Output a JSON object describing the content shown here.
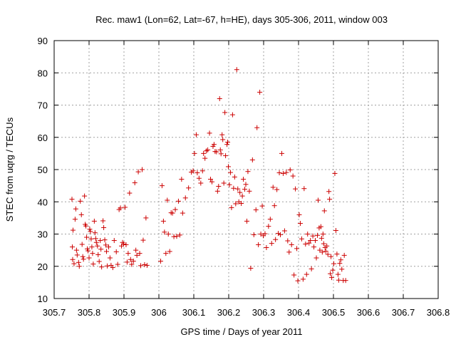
{
  "chart_data": {
    "type": "scatter",
    "title": "Rec. maw1 (Lon=62, Lat=-67, h=HE), days 305-306, 2011, window 003",
    "xlabel": "GPS time / Days of year 2011",
    "ylabel": "STEC from uqrg / TECUs",
    "xlim": [
      305.7,
      306.8
    ],
    "ylim": [
      10,
      90
    ],
    "xticks": [
      305.7,
      305.8,
      305.9,
      306.0,
      306.1,
      306.2,
      306.3,
      306.4,
      306.5,
      306.6,
      306.7,
      306.8
    ],
    "xtick_labels": [
      "305.7",
      "305.8",
      "305.9",
      "306",
      "306.1",
      "306.2",
      "306.3",
      "306.4",
      "306.5",
      "306.6",
      "306.7",
      "306.8"
    ],
    "yticks": [
      10,
      20,
      30,
      40,
      50,
      60,
      70,
      80,
      90
    ],
    "ytick_labels": [
      "10",
      "20",
      "30",
      "40",
      "50",
      "60",
      "70",
      "80",
      "90"
    ],
    "grid": true,
    "marker": "plus",
    "color": "#cc0000",
    "series": [
      {
        "points": [
          [
            305.751,
            40.8
          ],
          [
            305.754,
            31.2
          ],
          [
            305.752,
            26.0
          ],
          [
            305.753,
            22.1
          ],
          [
            305.757,
            20.8
          ],
          [
            305.76,
            34.6
          ],
          [
            305.762,
            37.8
          ],
          [
            305.764,
            25.0
          ],
          [
            305.766,
            23.5
          ],
          [
            305.77,
            21.2
          ],
          [
            305.772,
            20.0
          ],
          [
            305.775,
            40.2
          ],
          [
            305.778,
            36.0
          ],
          [
            305.78,
            26.8
          ],
          [
            305.782,
            23.0
          ],
          [
            305.784,
            22.2
          ],
          [
            305.787,
            41.8
          ],
          [
            305.789,
            33.0
          ],
          [
            305.791,
            32.5
          ],
          [
            305.793,
            29.0
          ],
          [
            305.795,
            25.4
          ],
          [
            305.797,
            24.8
          ],
          [
            305.8,
            22.6
          ],
          [
            305.802,
            31.5
          ],
          [
            305.804,
            30.8
          ],
          [
            305.806,
            28.5
          ],
          [
            305.808,
            26.0
          ],
          [
            305.81,
            24.0
          ],
          [
            305.812,
            20.7
          ],
          [
            305.815,
            34.0
          ],
          [
            305.817,
            30.4
          ],
          [
            305.819,
            28.6
          ],
          [
            305.821,
            27.4
          ],
          [
            305.824,
            26.3
          ],
          [
            305.826,
            23.6
          ],
          [
            305.829,
            21.5
          ],
          [
            305.832,
            28.0
          ],
          [
            305.834,
            25.3
          ],
          [
            305.836,
            19.8
          ],
          [
            305.84,
            34.1
          ],
          [
            305.842,
            32.0
          ],
          [
            305.845,
            28.2
          ],
          [
            305.848,
            26.6
          ],
          [
            305.85,
            24.6
          ],
          [
            305.852,
            20.1
          ],
          [
            305.856,
            26.0
          ],
          [
            305.86,
            22.6
          ],
          [
            305.863,
            20.3
          ],
          [
            305.868,
            19.6
          ],
          [
            305.872,
            28.0
          ],
          [
            305.878,
            24.5
          ],
          [
            305.882,
            20.6
          ],
          [
            305.886,
            37.6
          ],
          [
            305.89,
            38.1
          ],
          [
            305.893,
            26.3
          ],
          [
            305.896,
            27.4
          ],
          [
            305.899,
            26.9
          ],
          [
            305.903,
            38.3
          ],
          [
            305.906,
            26.7
          ],
          [
            305.909,
            21.3
          ],
          [
            305.912,
            24.0
          ],
          [
            305.916,
            42.7
          ],
          [
            305.919,
            22.1
          ],
          [
            305.922,
            20.6
          ],
          [
            305.927,
            21.6
          ],
          [
            305.931,
            45.9
          ],
          [
            305.934,
            25.0
          ],
          [
            305.937,
            23.4
          ],
          [
            305.941,
            49.3
          ],
          [
            305.945,
            24.0
          ],
          [
            305.948,
            20.2
          ],
          [
            305.952,
            50.0
          ],
          [
            305.955,
            28.1
          ],
          [
            305.959,
            20.5
          ],
          [
            305.963,
            35.0
          ],
          [
            305.966,
            20.3
          ],
          [
            306.005,
            21.6
          ],
          [
            306.009,
            45.0
          ],
          [
            306.013,
            34.0
          ],
          [
            306.016,
            30.6
          ],
          [
            306.02,
            24.0
          ],
          [
            306.024,
            40.5
          ],
          [
            306.027,
            30.0
          ],
          [
            306.031,
            24.6
          ],
          [
            306.035,
            36.6
          ],
          [
            306.039,
            36.5
          ],
          [
            306.043,
            29.2
          ],
          [
            306.047,
            37.6
          ],
          [
            306.051,
            29.3
          ],
          [
            306.056,
            40.2
          ],
          [
            306.06,
            29.7
          ],
          [
            306.065,
            47.0
          ],
          [
            306.068,
            36.5
          ],
          [
            306.076,
            41.2
          ],
          [
            306.085,
            44.3
          ],
          [
            306.093,
            49.2
          ],
          [
            306.098,
            49.6
          ],
          [
            306.102,
            55.0
          ],
          [
            306.107,
            60.8
          ],
          [
            306.11,
            49.0
          ],
          [
            306.115,
            47.3
          ],
          [
            306.12,
            45.8
          ],
          [
            306.125,
            49.6
          ],
          [
            306.128,
            55.0
          ],
          [
            306.132,
            53.5
          ],
          [
            306.136,
            55.8
          ],
          [
            306.14,
            56.1
          ],
          [
            306.145,
            61.3
          ],
          [
            306.148,
            47.0
          ],
          [
            306.152,
            46.2
          ],
          [
            306.155,
            57.2
          ],
          [
            306.158,
            57.8
          ],
          [
            306.161,
            55.6
          ],
          [
            306.165,
            55.5
          ],
          [
            306.168,
            43.3
          ],
          [
            306.171,
            44.8
          ],
          [
            306.174,
            72.0
          ],
          [
            306.176,
            56.1
          ],
          [
            306.178,
            54.9
          ],
          [
            306.181,
            60.8
          ],
          [
            306.183,
            59.3
          ],
          [
            306.186,
            45.8
          ],
          [
            306.189,
            67.7
          ],
          [
            306.191,
            54.3
          ],
          [
            306.195,
            57.8
          ],
          [
            306.197,
            58.5
          ],
          [
            306.199,
            50.9
          ],
          [
            306.202,
            45.3
          ],
          [
            306.205,
            49.1
          ],
          [
            306.208,
            38.2
          ],
          [
            306.211,
            67.0
          ],
          [
            306.214,
            44.2
          ],
          [
            306.217,
            47.7
          ],
          [
            306.22,
            39.4
          ],
          [
            306.223,
            81.0
          ],
          [
            306.226,
            44.0
          ],
          [
            306.229,
            40.0
          ],
          [
            306.232,
            42.9
          ],
          [
            306.236,
            39.5
          ],
          [
            306.239,
            41.8
          ],
          [
            306.242,
            47.0
          ],
          [
            306.246,
            43.9
          ],
          [
            306.249,
            45.4
          ],
          [
            306.252,
            34.0
          ],
          [
            306.255,
            49.4
          ],
          [
            306.259,
            43.3
          ],
          [
            306.263,
            19.4
          ],
          [
            306.268,
            53.0
          ],
          [
            306.272,
            29.8
          ],
          [
            306.278,
            37.5
          ],
          [
            306.281,
            63.0
          ],
          [
            306.285,
            26.7
          ],
          [
            306.289,
            74.0
          ],
          [
            306.292,
            30.0
          ],
          [
            306.296,
            38.7
          ],
          [
            306.299,
            29.5
          ],
          [
            306.304,
            30.1
          ],
          [
            306.308,
            25.8
          ],
          [
            306.314,
            32.4
          ],
          [
            306.319,
            34.6
          ],
          [
            306.323,
            27.1
          ],
          [
            306.327,
            44.5
          ],
          [
            306.331,
            38.8
          ],
          [
            306.334,
            28.3
          ],
          [
            306.338,
            43.8
          ],
          [
            306.342,
            30.2
          ],
          [
            306.345,
            49.0
          ],
          [
            306.348,
            29.8
          ],
          [
            306.352,
            55.0
          ],
          [
            306.356,
            48.8
          ],
          [
            306.36,
            31.0
          ],
          [
            306.365,
            49.1
          ],
          [
            306.369,
            27.9
          ],
          [
            306.373,
            24.4
          ],
          [
            306.376,
            49.9
          ],
          [
            306.38,
            26.7
          ],
          [
            306.384,
            48.0
          ],
          [
            306.387,
            17.3
          ],
          [
            306.391,
            44.0
          ],
          [
            306.395,
            25.5
          ],
          [
            306.398,
            15.5
          ],
          [
            306.402,
            36.0
          ],
          [
            306.405,
            33.3
          ],
          [
            306.409,
            28.5
          ],
          [
            306.413,
            16.0
          ],
          [
            306.416,
            44.1
          ],
          [
            306.42,
            26.9
          ],
          [
            306.423,
            17.5
          ],
          [
            306.426,
            30.0
          ],
          [
            306.43,
            27.2
          ],
          [
            306.434,
            28.0
          ],
          [
            306.437,
            19.2
          ],
          [
            306.441,
            29.4
          ],
          [
            306.444,
            26.0
          ],
          [
            306.448,
            28.0
          ],
          [
            306.451,
            22.6
          ],
          [
            306.454,
            29.6
          ],
          [
            306.456,
            40.5
          ],
          [
            306.459,
            31.9
          ],
          [
            306.461,
            25.0
          ],
          [
            306.464,
            32.3
          ],
          [
            306.466,
            28.7
          ],
          [
            306.468,
            24.4
          ],
          [
            306.47,
            30.0
          ],
          [
            306.472,
            27.0
          ],
          [
            306.474,
            37.2
          ],
          [
            306.476,
            25.8
          ],
          [
            306.478,
            24.7
          ],
          [
            306.481,
            26.3
          ],
          [
            306.484,
            23.7
          ],
          [
            306.487,
            43.2
          ],
          [
            306.489,
            40.8
          ],
          [
            306.491,
            17.7
          ],
          [
            306.493,
            23.0
          ],
          [
            306.495,
            16.5
          ],
          [
            306.498,
            18.8
          ],
          [
            306.501,
            20.8
          ],
          [
            306.504,
            48.8
          ],
          [
            306.507,
            31.1
          ],
          [
            306.51,
            23.8
          ],
          [
            306.513,
            17.5
          ],
          [
            306.515,
            15.7
          ],
          [
            306.518,
            20.9
          ],
          [
            306.521,
            22.0
          ],
          [
            306.524,
            19.1
          ],
          [
            306.528,
            15.6
          ],
          [
            306.531,
            23.4
          ],
          [
            306.535,
            15.6
          ]
        ]
      }
    ]
  }
}
